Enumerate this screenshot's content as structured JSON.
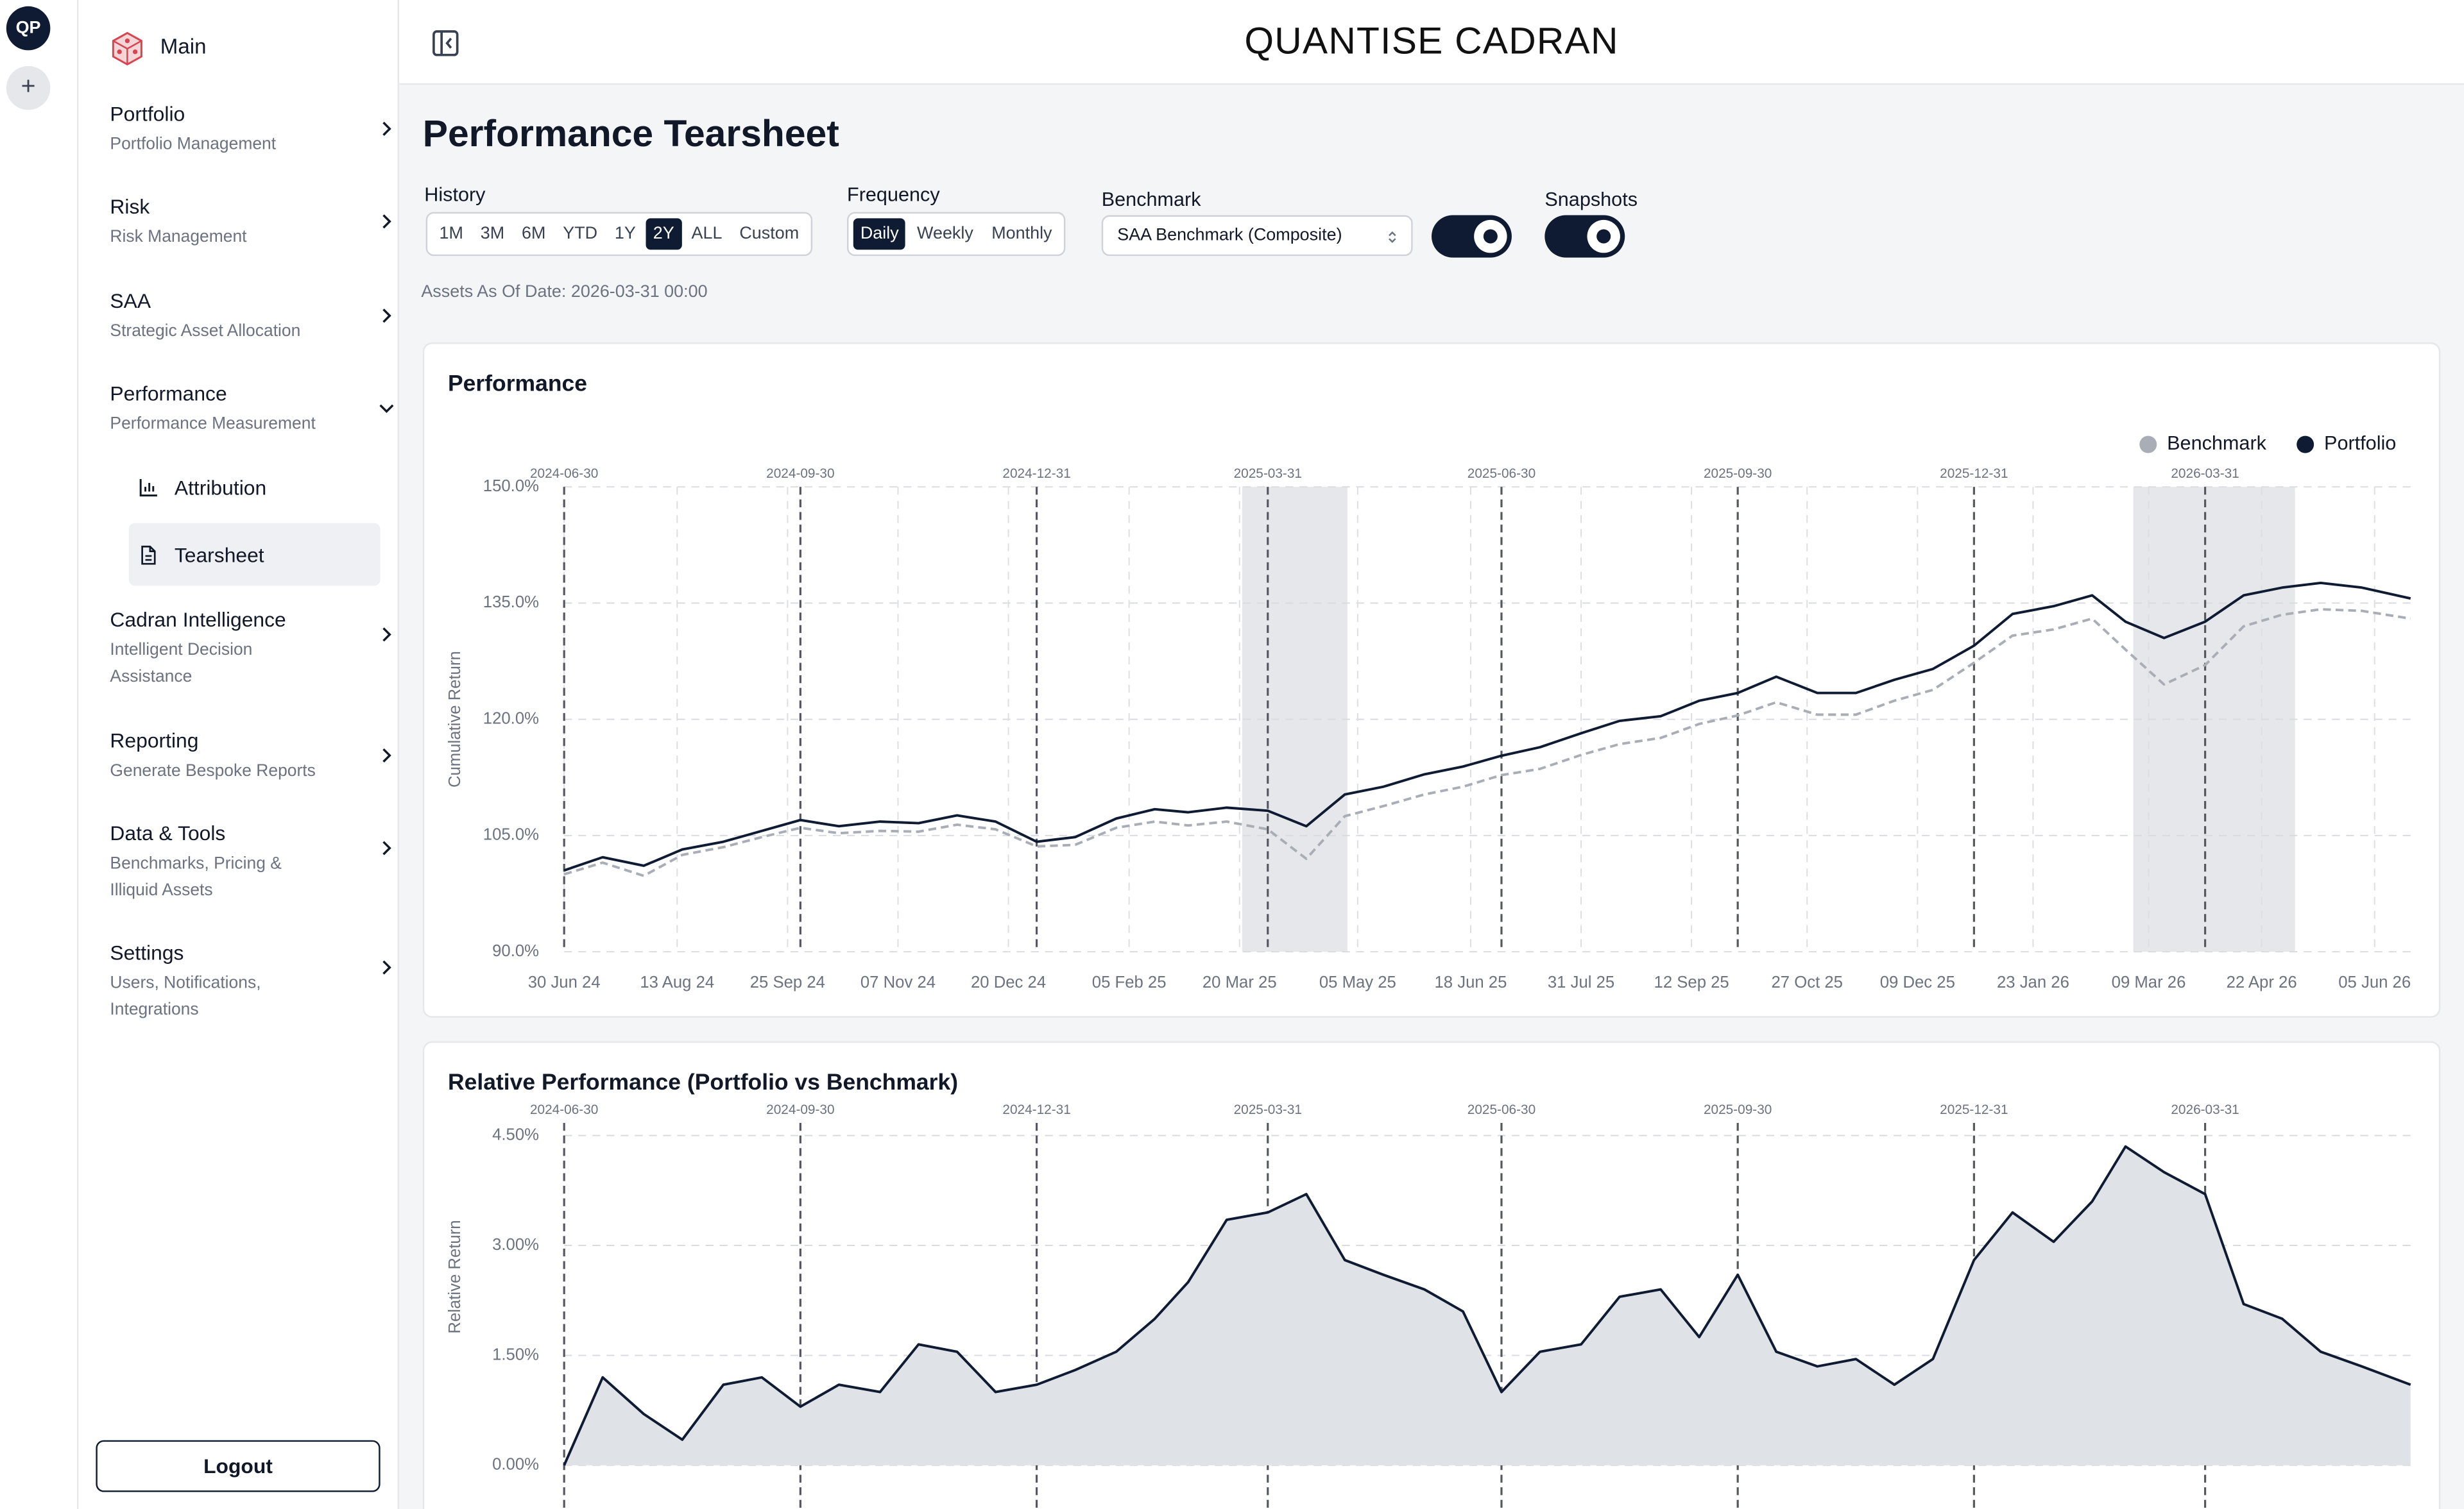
{
  "rail": {
    "avatar": "QP",
    "add": "+"
  },
  "sidebar": {
    "home": "Main",
    "nav": [
      {
        "title": "Portfolio",
        "subtitle": "Portfolio Management"
      },
      {
        "title": "Risk",
        "subtitle": "Risk Management"
      },
      {
        "title": "SAA",
        "subtitle": "Strategic Asset Allocation"
      },
      {
        "title": "Performance",
        "subtitle": "Performance Measurement"
      },
      {
        "title": "Cadran Intelligence",
        "subtitle": "Intelligent Decision Assistance"
      },
      {
        "title": "Reporting",
        "subtitle": "Generate Bespoke Reports"
      },
      {
        "title": "Data & Tools",
        "subtitle": "Benchmarks, Pricing & Illiquid Assets"
      },
      {
        "title": "Settings",
        "subtitle": "Users, Notifications, Integrations"
      }
    ],
    "expanded_index": 3,
    "subnav": [
      "Attribution",
      "Tearsheet"
    ],
    "active_subnav_index": 1,
    "logout": "Logout"
  },
  "header": {
    "title": "QUANTISE CADRAN"
  },
  "page": {
    "title": "Performance Tearsheet",
    "history": {
      "label": "History",
      "options": [
        "1M",
        "3M",
        "6M",
        "YTD",
        "1Y",
        "2Y",
        "ALL",
        "Custom"
      ],
      "active_index": 5
    },
    "frequency": {
      "label": "Frequency",
      "options": [
        "Daily",
        "Weekly",
        "Monthly"
      ],
      "active_index": 0
    },
    "benchmark": {
      "label": "Benchmark",
      "selected": "SAA Benchmark (Composite)",
      "toggle_on": true
    },
    "snapshots": {
      "label": "Snapshots",
      "toggle_on": true
    },
    "as_of": "Assets As Of Date: 2026-03-31 00:00"
  },
  "chart_data": [
    {
      "type": "line",
      "title": "Performance",
      "y_label": "Cumulative Return",
      "legend": "top-right",
      "grid": true,
      "x": [
        "2024-06-30",
        "2024-07-15",
        "2024-07-31",
        "2024-08-15",
        "2024-08-31",
        "2024-09-15",
        "2024-09-30",
        "2024-10-15",
        "2024-10-31",
        "2024-11-15",
        "2024-11-30",
        "2024-12-15",
        "2024-12-31",
        "2025-01-15",
        "2025-01-31",
        "2025-02-15",
        "2025-02-28",
        "2025-03-15",
        "2025-03-31",
        "2025-04-15",
        "2025-04-30",
        "2025-05-15",
        "2025-05-31",
        "2025-06-15",
        "2025-06-30",
        "2025-07-15",
        "2025-07-31",
        "2025-08-15",
        "2025-08-31",
        "2025-09-15",
        "2025-09-30",
        "2025-10-15",
        "2025-10-31",
        "2025-11-15",
        "2025-11-30",
        "2025-12-15",
        "2025-12-31",
        "2026-01-15",
        "2026-01-31",
        "2026-02-15",
        "2026-02-28",
        "2026-03-15",
        "2026-03-31",
        "2026-04-15",
        "2026-04-30",
        "2026-05-15",
        "2026-05-31",
        "2026-06-19"
      ],
      "series": [
        {
          "name": "Benchmark",
          "color": "#a9aeb6",
          "line_style": "dashed",
          "values": [
            100.0,
            101.5,
            99.8,
            102.5,
            103.5,
            104.8,
            106.0,
            105.3,
            105.6,
            105.5,
            106.4,
            105.8,
            103.6,
            103.8,
            106.0,
            106.8,
            106.3,
            106.8,
            105.8,
            102.0,
            107.5,
            108.8,
            110.3,
            111.3,
            112.8,
            113.6,
            115.4,
            116.8,
            117.6,
            119.4,
            120.5,
            122.2,
            120.6,
            120.6,
            122.4,
            123.8,
            127.3,
            130.8,
            131.6,
            133.0,
            129.0,
            124.5,
            127.0,
            132.0,
            133.5,
            134.2,
            134.0,
            133.0
          ]
        },
        {
          "name": "Portfolio",
          "color": "#0f1b33",
          "line_style": "solid",
          "values": [
            100.5,
            102.2,
            101.1,
            103.2,
            104.2,
            105.6,
            107.0,
            106.2,
            106.8,
            106.6,
            107.6,
            106.8,
            104.2,
            104.8,
            107.2,
            108.4,
            108.0,
            108.6,
            108.2,
            106.2,
            110.3,
            111.3,
            112.9,
            113.9,
            115.3,
            116.4,
            118.2,
            119.8,
            120.4,
            122.4,
            123.4,
            125.5,
            123.4,
            123.4,
            125.1,
            126.5,
            129.5,
            133.6,
            134.6,
            136.0,
            132.6,
            130.5,
            132.6,
            136.0,
            137.0,
            137.6,
            137.0,
            135.6
          ]
        }
      ],
      "xlim": [
        "2024-06-30",
        "2026-06-19"
      ],
      "xticks": [
        {
          "value": "2024-06-30",
          "label": "30 Jun 24"
        },
        {
          "value": "2024-08-13",
          "label": "13 Aug 24"
        },
        {
          "value": "2024-09-25",
          "label": "25 Sep 24"
        },
        {
          "value": "2024-11-07",
          "label": "07 Nov 24"
        },
        {
          "value": "2024-12-20",
          "label": "20 Dec 24"
        },
        {
          "value": "2025-02-05",
          "label": "05 Feb 25"
        },
        {
          "value": "2025-03-20",
          "label": "20 Mar 25"
        },
        {
          "value": "2025-05-05",
          "label": "05 May 25"
        },
        {
          "value": "2025-06-18",
          "label": "18 Jun 25"
        },
        {
          "value": "2025-07-31",
          "label": "31 Jul 25"
        },
        {
          "value": "2025-09-12",
          "label": "12 Sep 25"
        },
        {
          "value": "2025-10-27",
          "label": "27 Oct 25"
        },
        {
          "value": "2025-12-09",
          "label": "09 Dec 25"
        },
        {
          "value": "2026-01-23",
          "label": "23 Jan 26"
        },
        {
          "value": "2026-03-09",
          "label": "09 Mar 26"
        },
        {
          "value": "2026-04-22",
          "label": "22 Apr 26"
        },
        {
          "value": "2026-06-05",
          "label": "05 Jun 26"
        }
      ],
      "ylim": [
        90,
        150
      ],
      "yticks": [
        {
          "value": 90,
          "label": "90.0%"
        },
        {
          "value": 105,
          "label": "105.0%"
        },
        {
          "value": 120,
          "label": "120.0%"
        },
        {
          "value": 135,
          "label": "135.0%"
        },
        {
          "value": 150,
          "label": "150.0%"
        }
      ],
      "markers": [
        "2024-06-30",
        "2024-09-30",
        "2024-12-31",
        "2025-03-31",
        "2025-06-30",
        "2025-09-30",
        "2025-12-31",
        "2026-03-31"
      ],
      "shaded_regions": [
        [
          "2025-03-21",
          "2025-05-01"
        ],
        [
          "2026-03-03",
          "2026-05-05"
        ]
      ]
    },
    {
      "type": "area",
      "title": "Relative Performance (Portfolio vs Benchmark)",
      "y_label": "Relative Return",
      "grid": true,
      "color": "#0f1b33",
      "fill_color": "#dfe2e7",
      "x": [
        "2024-06-30",
        "2024-07-15",
        "2024-07-31",
        "2024-08-15",
        "2024-08-31",
        "2024-09-15",
        "2024-09-30",
        "2024-10-15",
        "2024-10-31",
        "2024-11-15",
        "2024-11-30",
        "2024-12-15",
        "2024-12-31",
        "2025-01-15",
        "2025-01-31",
        "2025-02-15",
        "2025-02-28",
        "2025-03-15",
        "2025-03-31",
        "2025-04-15",
        "2025-04-30",
        "2025-05-15",
        "2025-05-31",
        "2025-06-15",
        "2025-06-30",
        "2025-07-15",
        "2025-07-31",
        "2025-08-15",
        "2025-08-31",
        "2025-09-15",
        "2025-09-30",
        "2025-10-15",
        "2025-10-31",
        "2025-11-15",
        "2025-11-30",
        "2025-12-15",
        "2025-12-31",
        "2026-01-15",
        "2026-01-31",
        "2026-02-15",
        "2026-02-28",
        "2026-03-15",
        "2026-03-31",
        "2026-04-15",
        "2026-04-30",
        "2026-05-15",
        "2026-05-31",
        "2026-06-19"
      ],
      "values": [
        0.0,
        1.2,
        0.7,
        0.35,
        1.1,
        1.2,
        0.8,
        1.1,
        1.0,
        1.65,
        1.55,
        1.0,
        1.1,
        1.3,
        1.55,
        2.0,
        2.5,
        3.35,
        3.45,
        3.7,
        2.8,
        2.6,
        2.4,
        2.1,
        1.0,
        1.55,
        1.65,
        2.3,
        2.4,
        1.75,
        2.6,
        1.55,
        1.35,
        1.45,
        1.1,
        1.45,
        2.8,
        3.45,
        3.05,
        3.6,
        4.35,
        4.0,
        3.7,
        2.2,
        2.0,
        1.55,
        1.35,
        1.1
      ],
      "xlim": [
        "2024-06-30",
        "2026-06-19"
      ],
      "ylim": [
        -1.5,
        4.5
      ],
      "yticks": [
        {
          "value": 0,
          "label": "0.00%"
        },
        {
          "value": 1.5,
          "label": "1.50%"
        },
        {
          "value": 3,
          "label": "3.00%"
        },
        {
          "value": 4.5,
          "label": "4.50%"
        }
      ],
      "markers": [
        "2024-06-30",
        "2024-09-30",
        "2024-12-31",
        "2025-03-31",
        "2025-06-30",
        "2025-09-30",
        "2025-12-31",
        "2026-03-31"
      ]
    }
  ]
}
